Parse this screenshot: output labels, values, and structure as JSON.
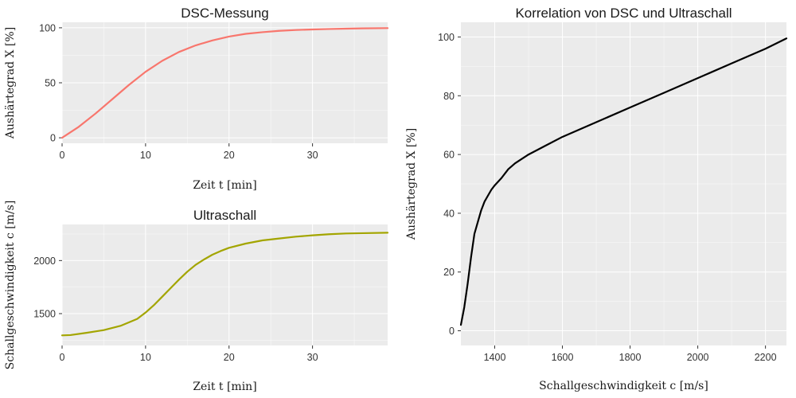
{
  "colors": {
    "dsc": "#f8766d",
    "ultraschall": "#a3a500",
    "korrelation": "#000000",
    "panel": "#ebebeb",
    "grid": "#ffffff"
  },
  "chart_data": [
    {
      "type": "line",
      "title": "DSC-Messung",
      "xlabel": "Zeit t [min]",
      "ylabel": "Aushärtegrad X [%]",
      "xlim": [
        0,
        39
      ],
      "ylim": [
        -5,
        105
      ],
      "xticks": [
        "0",
        "10",
        "20",
        "30"
      ],
      "yticks": [
        "0",
        "50",
        "100"
      ],
      "grid": true,
      "series": [
        {
          "color": "#f8766d",
          "x": [
            0,
            2,
            4,
            6,
            8,
            10,
            12,
            14,
            16,
            18,
            20,
            22,
            24,
            26,
            28,
            30,
            32,
            34,
            36,
            39
          ],
          "y": [
            0,
            10,
            22,
            35,
            48,
            60,
            70,
            78,
            84,
            88.5,
            92,
            94.5,
            96,
            97.2,
            98,
            98.5,
            98.9,
            99.2,
            99.5,
            99.7
          ]
        }
      ]
    },
    {
      "type": "line",
      "title": "Ultraschall",
      "xlabel": "Zeit t [min]",
      "ylabel": "Schallgeschwindigkeit c [m/s]",
      "xlim": [
        0,
        39
      ],
      "ylim": [
        1200,
        2340
      ],
      "xticks": [
        "0",
        "10",
        "20",
        "30"
      ],
      "yticks": [
        "1500",
        "2000"
      ],
      "grid": true,
      "series": [
        {
          "color": "#a3a500",
          "x": [
            0,
            1,
            3,
            5,
            7,
            9,
            10,
            11,
            12,
            13,
            14,
            15,
            16,
            17,
            18,
            19,
            20,
            22,
            24,
            26,
            28,
            30,
            32,
            34,
            36,
            39
          ],
          "y": [
            1295,
            1298,
            1320,
            1345,
            1385,
            1450,
            1510,
            1580,
            1660,
            1740,
            1820,
            1895,
            1960,
            2010,
            2055,
            2090,
            2120,
            2160,
            2190,
            2208,
            2225,
            2238,
            2248,
            2255,
            2258,
            2262
          ]
        }
      ]
    },
    {
      "type": "line",
      "title": "Korrelation von DSC und Ultraschall",
      "xlabel": "Schallgeschwindigkeit c [m/s]",
      "ylabel": "Aushärtegrad X [%]",
      "xlim": [
        1300,
        2262
      ],
      "ylim": [
        -5,
        105
      ],
      "xticks": [
        "1400",
        "1600",
        "1800",
        "2000",
        "2200"
      ],
      "yticks": [
        "0",
        "20",
        "40",
        "60",
        "80",
        "100"
      ],
      "grid": true,
      "series": [
        {
          "color": "#000000",
          "x": [
            1300,
            1310,
            1320,
            1330,
            1340,
            1350,
            1360,
            1370,
            1380,
            1390,
            1400,
            1420,
            1440,
            1460,
            1500,
            1550,
            1600,
            1650,
            1700,
            1800,
            1900,
            2000,
            2100,
            2200,
            2262
          ],
          "y": [
            2,
            8,
            16,
            25,
            33,
            37,
            41,
            44,
            46,
            48,
            49.5,
            52,
            55,
            57,
            60,
            63,
            66,
            68.5,
            71,
            76,
            81,
            86,
            91,
            96,
            99.5
          ]
        }
      ]
    }
  ]
}
